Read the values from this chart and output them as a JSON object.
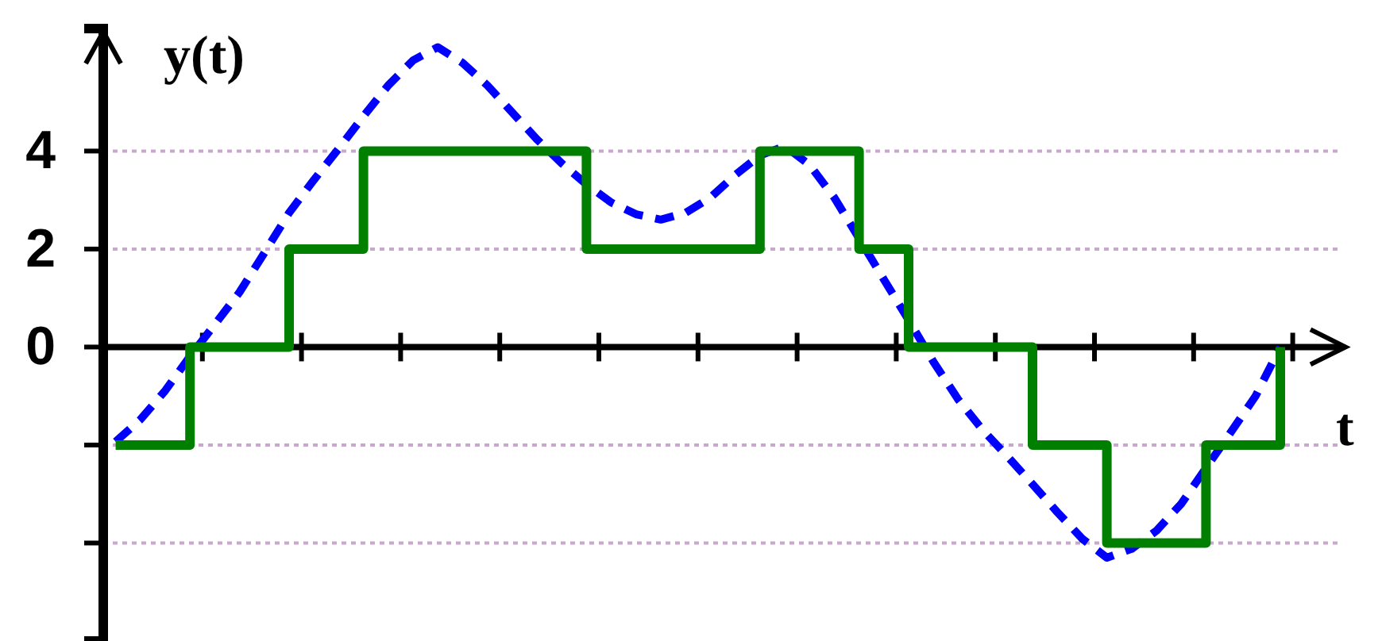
{
  "chart_data": {
    "type": "line",
    "xlabel": "t",
    "ylabel": "y(t)",
    "categories": [
      null,
      null,
      null,
      null,
      null,
      null,
      null,
      null,
      null,
      null,
      null,
      null,
      null,
      null,
      null,
      null,
      null,
      null,
      null,
      null,
      null,
      null,
      null,
      null,
      null,
      null,
      null,
      null,
      null,
      null,
      null,
      null,
      null,
      null,
      null,
      null,
      null,
      null,
      null,
      null,
      null,
      null,
      null,
      null,
      null,
      null,
      null,
      null,
      null,
      null
    ],
    "ylim": [
      -6,
      6.5
    ],
    "yticks": [
      4,
      2,
      0,
      {
        "value": -2,
        "label": null
      },
      {
        "value": -4,
        "label": null
      }
    ],
    "grid": "y",
    "marker": "none",
    "series": [
      {
        "color": "#0000ff",
        "line_style": "dashed",
        "values": [
          -1.93,
          -1.48,
          -0.89,
          -0.19,
          0.46,
          1.12,
          1.92,
          2.74,
          3.41,
          4.05,
          4.71,
          5.34,
          5.85,
          6.12,
          5.8,
          5.34,
          4.79,
          4.24,
          3.75,
          3.32,
          2.95,
          2.71,
          2.6,
          2.74,
          3.05,
          3.51,
          3.91,
          4.1,
          3.72,
          3.05,
          2.22,
          1.38,
          0.55,
          -0.3,
          -1.07,
          -1.7,
          -2.24,
          -2.8,
          -3.37,
          -3.91,
          -4.3,
          -4.12,
          -3.75,
          -3.2,
          -2.47,
          -1.74,
          -1,
          0,
          null,
          null
        ]
      },
      {
        "type": "step",
        "color": "#007f00",
        "line_style": "solid",
        "values": [
          -2,
          -2,
          -2,
          0,
          0,
          0,
          0,
          2,
          2,
          2,
          4,
          4,
          4,
          4,
          4,
          4,
          4,
          4,
          4,
          2,
          2,
          2,
          2,
          2,
          2,
          2,
          4,
          4,
          4,
          4,
          2,
          2,
          0,
          0,
          0,
          0,
          0,
          -2,
          -2,
          -2,
          -4,
          -4,
          -4,
          -4,
          -2,
          -2,
          -2,
          0,
          null,
          null
        ]
      }
    ]
  }
}
